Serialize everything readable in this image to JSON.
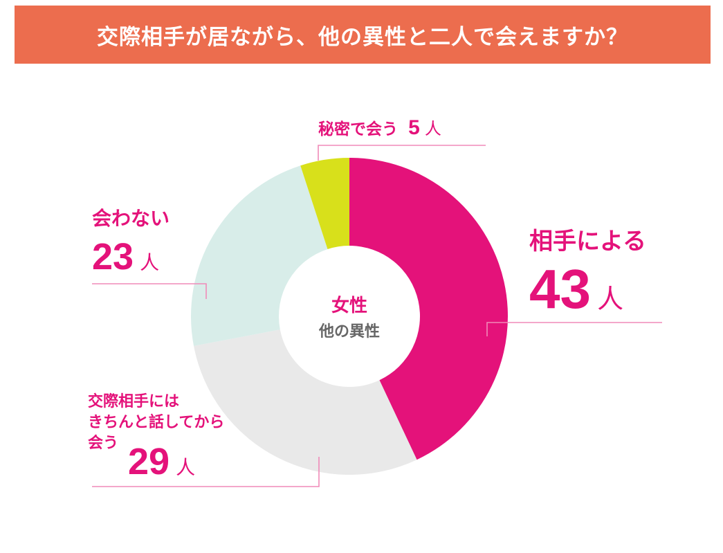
{
  "title": "交際相手が居ながら、他の異性と二人で会えますか？",
  "center": {
    "main": "女性",
    "sub": "他の異性"
  },
  "colors": {
    "title_bg": "#ec6d4e",
    "accent": "#e4127a",
    "slice_partner": "#e4127a",
    "slice_talk_first": "#e9e9e9",
    "slice_no_meet": "#d8ede9",
    "slice_secret": "#d8e01b",
    "leader": "#f08ab8"
  },
  "chart_data": {
    "type": "pie",
    "variant": "donut",
    "unit": "人",
    "slices": [
      {
        "label": "相手による",
        "value": 43
      },
      {
        "label": "交際相手にはきちんと話してから会う",
        "value": 29
      },
      {
        "label": "会わない",
        "value": 23
      },
      {
        "label": "秘密で会う",
        "value": 5
      }
    ]
  },
  "labels": {
    "partner": {
      "text": "相手による",
      "value": "43",
      "unit": "人"
    },
    "talk_first": {
      "line1": "交際相手には",
      "line2": "きちんと話してから",
      "line3": "会う",
      "value": "29",
      "unit": "人"
    },
    "no_meet": {
      "text": "会わない",
      "value": "23",
      "unit": "人"
    },
    "secret": {
      "text": "秘密で会う",
      "value": "5",
      "unit": "人"
    }
  }
}
